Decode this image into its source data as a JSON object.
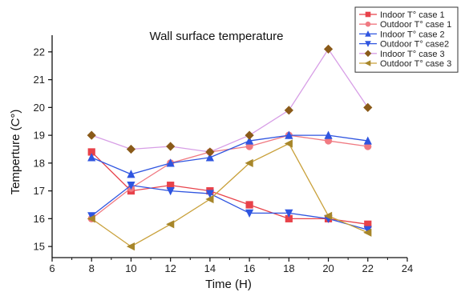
{
  "chart_data": {
    "type": "line",
    "title": "Wall surface temperature",
    "xlabel": "Time (H)",
    "ylabel": "Temperture (C°)",
    "xlim": [
      6,
      24
    ],
    "ylim": [
      14.6,
      22.6
    ],
    "xticks": [
      "6",
      "8",
      "10",
      "12",
      "14",
      "16",
      "18",
      "20",
      "22",
      "24"
    ],
    "yticks": [
      "15",
      "16",
      "17",
      "18",
      "19",
      "20",
      "21",
      "22"
    ],
    "x": [
      8,
      10,
      12,
      14,
      16,
      18,
      20,
      22
    ],
    "legend_position": "top-right",
    "series": [
      {
        "name": "Indoor T° case  1",
        "color": "#e8424a",
        "marker": "square",
        "values": [
          18.4,
          17.0,
          17.2,
          17.0,
          16.5,
          16.0,
          16.0,
          15.8
        ]
      },
      {
        "name": "Outdoor T° case 1",
        "color": "#f07a82",
        "marker": "circle",
        "values": [
          16.0,
          17.1,
          18.0,
          18.4,
          18.6,
          19.0,
          18.8,
          18.6
        ]
      },
      {
        "name": "Indoor T° case 2",
        "color": "#2f55e0",
        "marker": "triangle-up",
        "values": [
          18.2,
          17.6,
          18.0,
          18.2,
          18.8,
          19.0,
          19.0,
          18.8
        ]
      },
      {
        "name": "Outdoor T° case2",
        "color": "#2f55e0",
        "marker": "triangle-down",
        "values": [
          16.1,
          17.2,
          17.0,
          16.9,
          16.2,
          16.2,
          16.0,
          15.6
        ]
      },
      {
        "name": "Indoor T° case 3",
        "color": "#d79ee6",
        "marker": "diamond",
        "marker_color": "#8a5a19",
        "values": [
          19.0,
          18.5,
          18.6,
          18.4,
          19.0,
          19.9,
          22.1,
          20.0
        ]
      },
      {
        "name": "Outdoor T° case 3",
        "color": "#c9a13b",
        "marker": "triangle-left",
        "marker_color": "#a7862a",
        "values": [
          16.0,
          15.0,
          15.8,
          16.7,
          18.0,
          18.7,
          16.1,
          15.5
        ]
      }
    ]
  }
}
